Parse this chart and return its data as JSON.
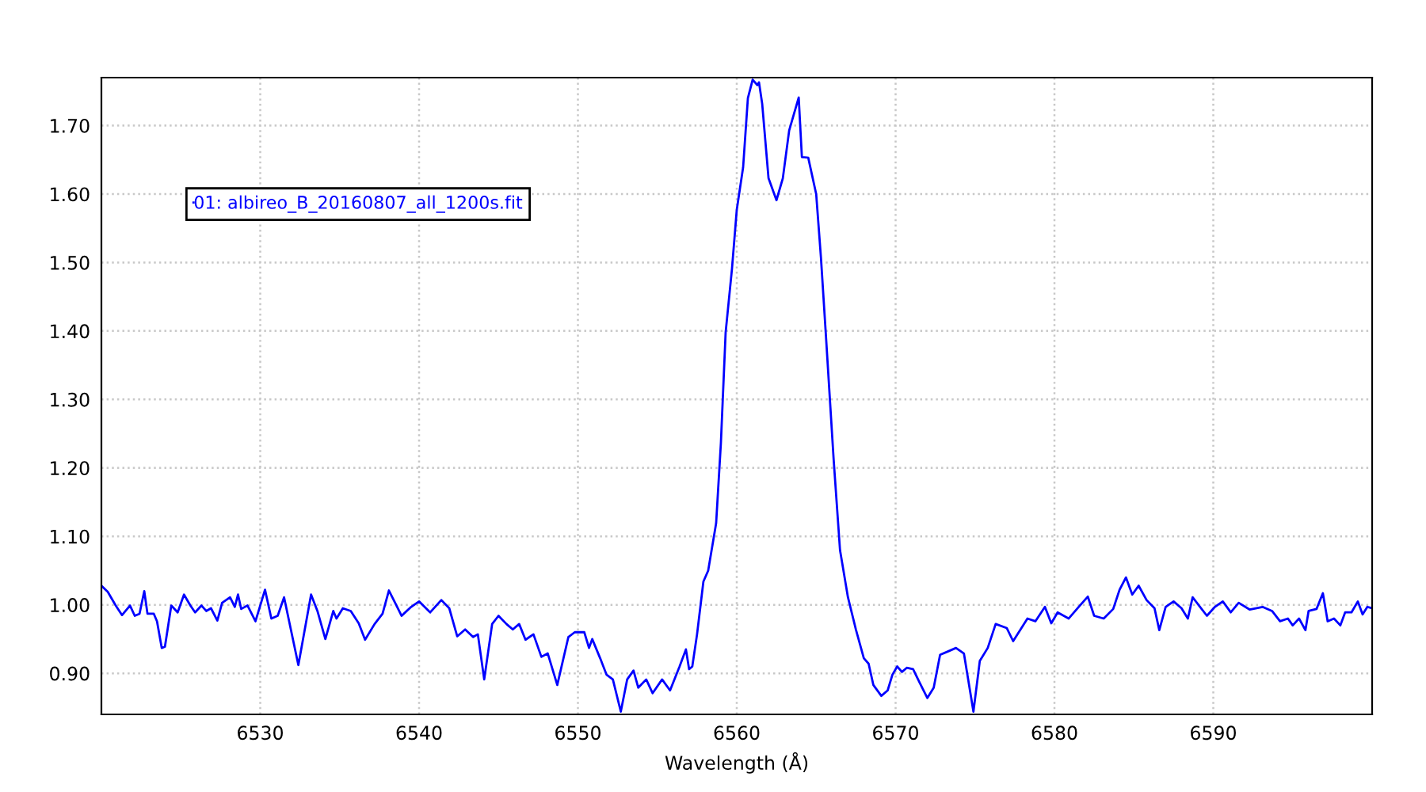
{
  "chart_data": {
    "type": "line",
    "xlabel": "Wavelength (Å)",
    "xlim": [
      6520,
      6600
    ],
    "ylim": [
      0.84,
      1.77
    ],
    "xticks": [
      6530,
      6540,
      6550,
      6560,
      6570,
      6580,
      6590
    ],
    "yticks": [
      {
        "value": 0.9,
        "label": "0.90"
      },
      {
        "value": 1.0,
        "label": "1.00"
      },
      {
        "value": 1.1,
        "label": "1.10"
      },
      {
        "value": 1.2,
        "label": "1.20"
      },
      {
        "value": 1.3,
        "label": "1.30"
      },
      {
        "value": 1.4,
        "label": "1.40"
      },
      {
        "value": 1.5,
        "label": "1.50"
      },
      {
        "value": 1.6,
        "label": "1.60"
      },
      {
        "value": 1.7,
        "label": "1.70"
      }
    ],
    "grid": true,
    "legend": "top left",
    "marker": "none",
    "line_style": "solid",
    "series": [
      {
        "name": "01: albireo_B_20160807_all_1200s.fit",
        "color": "#0000ff",
        "x": [
          6520.0,
          6520.4,
          6520.9,
          6521.3,
          6521.8,
          6522.1,
          6522.4,
          6522.7,
          6522.9,
          6523.3,
          6523.5,
          6523.8,
          6524.0,
          6524.4,
          6524.8,
          6525.2,
          6525.6,
          6525.9,
          6526.3,
          6526.6,
          6526.9,
          6527.3,
          6527.6,
          6528.1,
          6528.4,
          6528.6,
          6528.8,
          6529.2,
          6529.7,
          6530.3,
          6530.7,
          6531.1,
          6531.5,
          6532.4,
          6533.2,
          6533.6,
          6534.1,
          6534.6,
          6534.8,
          6535.2,
          6535.7,
          6536.2,
          6536.6,
          6537.2,
          6537.7,
          6538.1,
          6538.9,
          6539.5,
          6540.0,
          6540.7,
          6541.4,
          6541.9,
          6542.4,
          6542.9,
          6543.4,
          6543.7,
          6544.1,
          6544.6,
          6545.0,
          6545.5,
          6545.9,
          6546.3,
          6546.7,
          6547.2,
          6547.7,
          6548.1,
          6548.7,
          6549.4,
          6549.8,
          6550.4,
          6550.7,
          6550.9,
          6551.4,
          6551.8,
          6552.2,
          6552.7,
          6553.1,
          6553.5,
          6553.8,
          6554.3,
          6554.7,
          6555.3,
          6555.8,
          6556.4,
          6556.8,
          6557.0,
          6557.2,
          6557.5,
          6557.9,
          6558.2,
          6558.7,
          6559.0,
          6559.3,
          6559.7,
          6560.0,
          6560.4,
          6560.7,
          6561.0,
          6561.3,
          6561.4,
          6561.6,
          6562.0,
          6562.5,
          6562.9,
          6563.3,
          6563.9,
          6564.1,
          6564.5,
          6565.0,
          6565.3,
          6565.6,
          6566.1,
          6566.5,
          6567.0,
          6567.5,
          6568.0,
          6568.3,
          6568.6,
          6569.1,
          6569.5,
          6569.8,
          6570.1,
          6570.4,
          6570.7,
          6571.1,
          6571.5,
          6572.0,
          6572.4,
          6572.8,
          6573.4,
          6573.8,
          6574.3,
          6574.9,
          6575.3,
          6575.8,
          6576.3,
          6577.0,
          6577.4,
          6578.3,
          6578.8,
          6579.4,
          6579.8,
          6580.2,
          6580.9,
          6581.6,
          6582.1,
          6582.5,
          6583.1,
          6583.7,
          6584.1,
          6584.5,
          6584.9,
          6585.3,
          6585.8,
          6586.3,
          6586.6,
          6587.0,
          6587.5,
          6588.0,
          6588.4,
          6588.7,
          6589.1,
          6589.6,
          6590.1,
          6590.6,
          6591.1,
          6591.6,
          6592.3,
          6593.1,
          6593.7,
          6594.2,
          6594.7,
          6595.0,
          6595.4,
          6595.8,
          6596.0,
          6596.5,
          6596.9,
          6597.2,
          6597.6,
          6598.0,
          6598.3,
          6598.7,
          6599.1,
          6599.4,
          6599.7,
          6600.0
        ],
        "values": [
          1.028,
          1.019,
          0.999,
          0.985,
          0.999,
          0.984,
          0.987,
          1.02,
          0.987,
          0.987,
          0.976,
          0.937,
          0.939,
          0.999,
          0.989,
          1.015,
          0.999,
          0.989,
          0.999,
          0.991,
          0.995,
          0.977,
          1.003,
          1.011,
          0.997,
          1.015,
          0.994,
          0.999,
          0.976,
          1.022,
          0.98,
          0.984,
          1.011,
          0.912,
          1.015,
          0.991,
          0.95,
          0.991,
          0.98,
          0.995,
          0.991,
          0.973,
          0.949,
          0.972,
          0.987,
          1.021,
          0.984,
          0.997,
          1.005,
          0.989,
          1.007,
          0.995,
          0.954,
          0.964,
          0.953,
          0.957,
          0.891,
          0.972,
          0.984,
          0.972,
          0.964,
          0.972,
          0.949,
          0.957,
          0.924,
          0.929,
          0.883,
          0.953,
          0.96,
          0.96,
          0.937,
          0.95,
          0.922,
          0.898,
          0.891,
          0.844,
          0.891,
          0.904,
          0.879,
          0.891,
          0.871,
          0.891,
          0.875,
          0.91,
          0.935,
          0.906,
          0.91,
          0.957,
          1.034,
          1.05,
          1.119,
          1.236,
          1.398,
          1.491,
          1.577,
          1.639,
          1.74,
          1.767,
          1.759,
          1.763,
          1.732,
          1.623,
          1.591,
          1.623,
          1.693,
          1.741,
          1.654,
          1.653,
          1.6,
          1.507,
          1.398,
          1.212,
          1.08,
          1.011,
          0.964,
          0.922,
          0.914,
          0.883,
          0.867,
          0.875,
          0.898,
          0.91,
          0.902,
          0.908,
          0.906,
          0.887,
          0.864,
          0.879,
          0.927,
          0.933,
          0.937,
          0.929,
          0.844,
          0.918,
          0.937,
          0.972,
          0.966,
          0.947,
          0.98,
          0.976,
          0.997,
          0.973,
          0.989,
          0.98,
          0.999,
          1.012,
          0.984,
          0.98,
          0.994,
          1.022,
          1.04,
          1.015,
          1.028,
          1.007,
          0.995,
          0.963,
          0.997,
          1.005,
          0.995,
          0.98,
          1.011,
          0.999,
          0.984,
          0.997,
          1.005,
          0.989,
          1.003,
          0.993,
          0.997,
          0.991,
          0.976,
          0.98,
          0.97,
          0.98,
          0.963,
          0.991,
          0.994,
          1.017,
          0.976,
          0.98,
          0.97,
          0.989,
          0.989,
          1.005,
          0.986,
          0.997,
          0.995
        ]
      }
    ]
  }
}
